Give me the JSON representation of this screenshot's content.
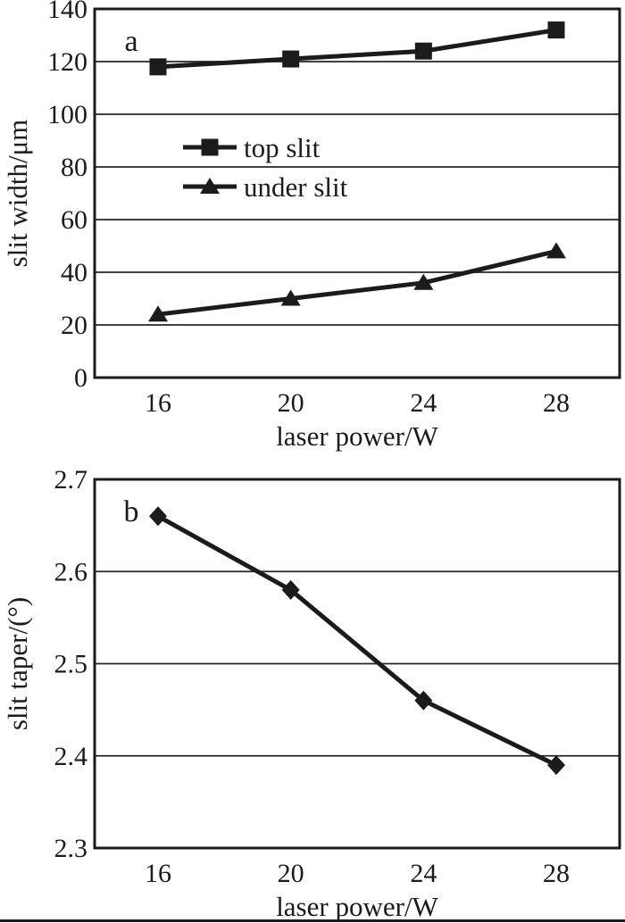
{
  "colors": {
    "ink": "#1b1b1b",
    "grid": "#262626",
    "background": "#ffffff"
  },
  "chart_data": [
    {
      "id": "panel-a",
      "type": "line",
      "panel_label": "a",
      "x": [
        16,
        20,
        24,
        28
      ],
      "xticklabels": [
        "16",
        "20",
        "24",
        "28"
      ],
      "series": [
        {
          "name": "top slit",
          "marker": "square",
          "values": [
            118,
            121,
            124,
            132
          ]
        },
        {
          "name": "under slit",
          "marker": "triangle",
          "values": [
            24,
            30,
            36,
            48
          ]
        }
      ],
      "xlabel": "laser power/W",
      "ylabel": "slit width/μm",
      "ylim": [
        0,
        140
      ],
      "ytick_step": 20,
      "yticklabels": [
        "0",
        "20",
        "40",
        "60",
        "80",
        "100",
        "120",
        "140"
      ],
      "grid": true,
      "legend": true,
      "legend_position": "inside-center-left"
    },
    {
      "id": "panel-b",
      "type": "line",
      "panel_label": "b",
      "x": [
        16,
        20,
        24,
        28
      ],
      "xticklabels": [
        "16",
        "20",
        "24",
        "28"
      ],
      "series": [
        {
          "name": "slit taper",
          "marker": "diamond",
          "values": [
            2.66,
            2.58,
            2.46,
            2.39
          ]
        }
      ],
      "xlabel": "laser power/W",
      "ylabel": "slit taper/(°)",
      "ylim": [
        2.3,
        2.7
      ],
      "ytick_step": 0.1,
      "yticklabels": [
        "2.3",
        "2.4",
        "2.5",
        "2.6",
        "2.7"
      ],
      "grid": true,
      "legend": false
    }
  ]
}
